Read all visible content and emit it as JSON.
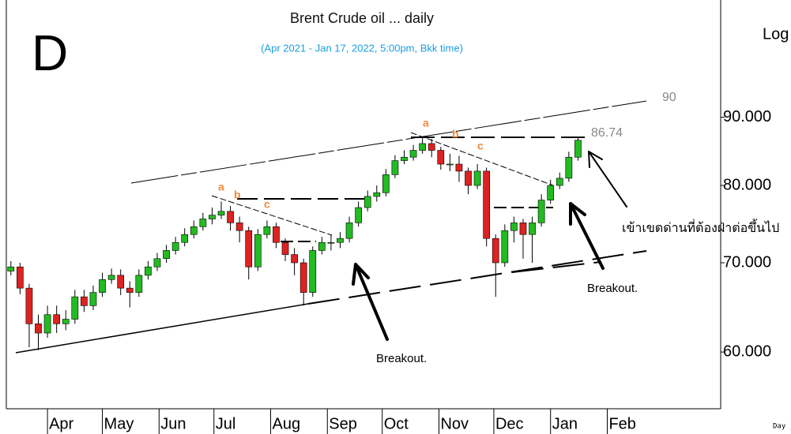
{
  "chart_data": {
    "type": "candlestick",
    "title": "Brent Crude oil ... daily",
    "subtitle": "(Apr 2021 - Jan 17, 2022, 5:00pm, Bkk time)",
    "panel_label": "D",
    "scale_label": "Log",
    "interval_label": "Day",
    "log_scale": true,
    "up_color": "#22bb22",
    "down_color": "#dd2222",
    "xlim": [
      -22.5,
      368
    ],
    "xticks": [
      {
        "value": 0,
        "label": "Apr"
      },
      {
        "value": 30,
        "label": "May"
      },
      {
        "value": 61,
        "label": "Jun"
      },
      {
        "value": 91,
        "label": "Jul"
      },
      {
        "value": 122,
        "label": "Aug"
      },
      {
        "value": 153,
        "label": "Sep"
      },
      {
        "value": 183,
        "label": "Oct"
      },
      {
        "value": 214,
        "label": "Nov"
      },
      {
        "value": 244,
        "label": "Dec"
      },
      {
        "value": 275,
        "label": "Jan"
      },
      {
        "value": 306,
        "label": "Feb"
      }
    ],
    "ylim": [
      54.4,
      110.2
    ],
    "yticks": [
      {
        "value": 60,
        "label": "60.000"
      },
      {
        "value": 70,
        "label": "70.000"
      },
      {
        "value": 80,
        "label": "80.000"
      },
      {
        "value": 90,
        "label": "90.000"
      }
    ],
    "x": [
      -20,
      -15,
      -10,
      -5,
      0,
      5,
      10,
      15,
      20,
      25,
      30,
      35,
      40,
      45,
      50,
      55,
      60,
      65,
      70,
      75,
      80,
      85,
      90,
      95,
      100,
      105,
      110,
      115,
      120,
      125,
      130,
      135,
      140,
      145,
      150,
      155,
      160,
      165,
      170,
      175,
      180,
      185,
      190,
      195,
      200,
      205,
      210,
      215,
      220,
      225,
      230,
      235,
      240,
      245,
      250,
      255,
      260,
      265,
      270,
      275,
      280,
      285,
      290
    ],
    "open": [
      69,
      69.5,
      67,
      63,
      62,
      64,
      63,
      63.5,
      66,
      65,
      66.5,
      68,
      68.5,
      67,
      66.5,
      68.5,
      69.5,
      70.5,
      71.5,
      72.5,
      73.5,
      74.5,
      75.5,
      76,
      76.5,
      75,
      74,
      69.5,
      73.5,
      74.5,
      72.5,
      71,
      70,
      66.5,
      71.5,
      72.5,
      72.5,
      73,
      75,
      77,
      78.5,
      79,
      81.5,
      83.5,
      84,
      85,
      86,
      85,
      83,
      83,
      82,
      80,
      82,
      73,
      70,
      74,
      75,
      73.5,
      75,
      78,
      80,
      81,
      84
    ],
    "high": [
      70.2,
      70,
      67.5,
      64,
      65,
      65,
      64.5,
      66.8,
      66.8,
      67.3,
      68.8,
      69.3,
      69.2,
      67.8,
      69.2,
      70.2,
      71.2,
      72.2,
      73.2,
      74.3,
      75.3,
      76.3,
      77,
      77.8,
      77.2,
      75.8,
      74.5,
      74.2,
      75.3,
      75,
      73,
      71.8,
      70.5,
      72,
      73.2,
      73.5,
      73.8,
      75.8,
      77.8,
      79.3,
      80,
      82.3,
      84.3,
      85,
      85.8,
      86.8,
      86.7,
      85.5,
      84.5,
      84.2,
      82.5,
      83,
      82.5,
      73.5,
      74.8,
      75.8,
      75.5,
      75.8,
      78.8,
      80.8,
      81.8,
      84.8,
      87
    ],
    "low": [
      68.5,
      66.3,
      60.5,
      60.2,
      61.5,
      62,
      62.3,
      63,
      64.3,
      64.5,
      66,
      67.5,
      66.2,
      64.8,
      66,
      68,
      69,
      70,
      71,
      72,
      73,
      74,
      74.8,
      75.5,
      74,
      72.5,
      68,
      69,
      73,
      71.8,
      70.2,
      68.5,
      65,
      66,
      71,
      71.5,
      71.8,
      72.5,
      74.5,
      76.5,
      77.8,
      78.5,
      81,
      83,
      83.5,
      84.5,
      84,
      82.2,
      82,
      80.5,
      78.8,
      79.5,
      72,
      66,
      69.5,
      72.5,
      70.5,
      70,
      74.5,
      77.5,
      79.5,
      80.5,
      83.5
    ],
    "close": [
      69.5,
      67,
      63,
      62,
      64,
      63,
      63.5,
      66,
      65,
      66.5,
      68,
      68.5,
      67,
      66.5,
      68.5,
      69.5,
      70.5,
      71.5,
      72.5,
      73.5,
      74.5,
      75.5,
      76,
      76.5,
      75,
      74,
      69.5,
      73.5,
      74.5,
      72.5,
      71,
      70,
      66.5,
      71.5,
      72.5,
      72.5,
      73,
      75,
      77,
      78.5,
      79,
      81.5,
      83.5,
      84,
      85,
      86,
      85,
      83,
      83,
      82,
      80,
      82,
      73,
      70,
      74,
      75,
      73.5,
      75,
      78,
      80,
      81,
      84,
      86.5
    ],
    "annotations": {
      "channel_label": "90",
      "level_label": "86.74",
      "wave_labels_1": [
        "a",
        "b",
        "c"
      ],
      "wave_labels_2": [
        "a",
        "b",
        "c"
      ],
      "breakout_1": "Breakout.",
      "breakout_2": "Breakout.",
      "resistance_note": "เข้าเขตด่านที่ต้องฝ่าต่อขึ้นไป"
    }
  }
}
